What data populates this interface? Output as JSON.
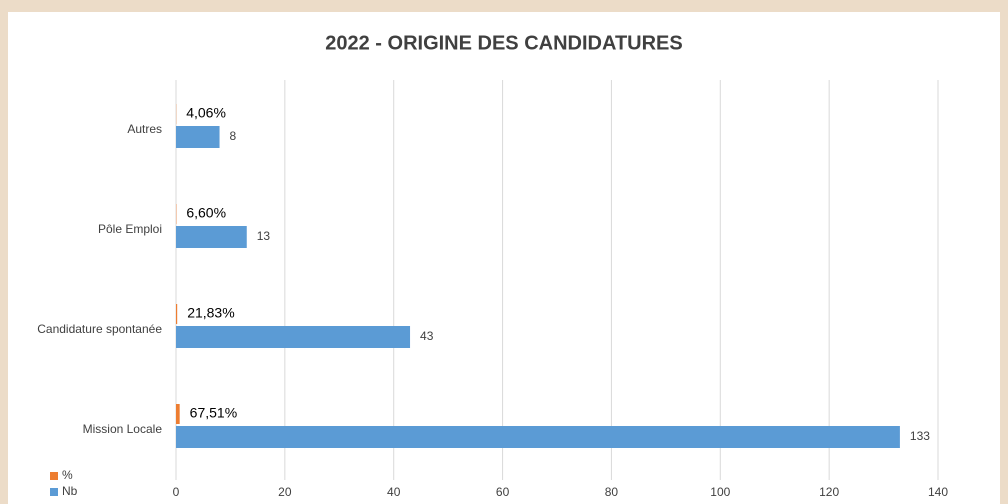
{
  "chart_data": {
    "type": "hbar",
    "title": "2022 - ORIGINE DES CANDIDATURES",
    "categories": [
      "Mission Locale",
      "Candidature spontanée",
      "Pôle Emploi",
      "Autres"
    ],
    "series": [
      {
        "name": "%",
        "color": "#ed7d31",
        "values": [
          0.6751,
          0.2183,
          0.066,
          0.0406
        ],
        "value_labels": [
          "67,51%",
          "21,83%",
          "6,60%",
          "4,06%"
        ]
      },
      {
        "name": "Nb",
        "color": "#5b9bd5",
        "values": [
          133,
          43,
          13,
          8
        ]
      }
    ],
    "xlim": [
      0,
      140
    ],
    "xticks": [
      0,
      20,
      40,
      60,
      80,
      100,
      120,
      140
    ],
    "grid": true,
    "legend": "bottom-left"
  }
}
